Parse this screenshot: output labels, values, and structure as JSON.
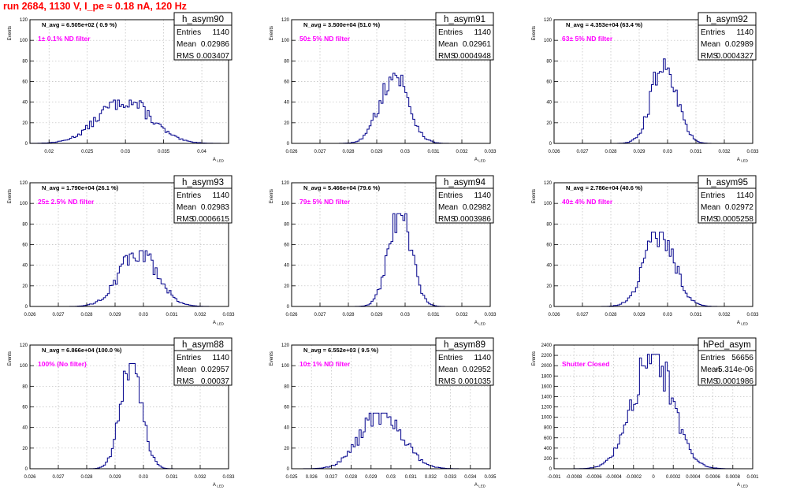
{
  "title": "run 2684,  1130 V, I_pe ≈ 0.18 nA, 120 Hz",
  "colors": {
    "title": "#ff0000",
    "histogram": "#00008b",
    "annotation": "#ff00ff",
    "grid": "#bbbbbb",
    "frame": "#000000"
  },
  "chart_data": [
    {
      "type": "histogram",
      "name": "h_asym90",
      "nAvg": "N_avg = 6.505e+02 ( 0.9 %)",
      "filter": "1± 0.1% ND filter",
      "stats": {
        "Entries": "1140",
        "Mean": "0.02986",
        "RMS": "0.003407"
      },
      "xlabel": "A_LED",
      "ylabel": "Events",
      "xlim": [
        0.0175,
        0.0435
      ],
      "ylim": [
        0,
        120
      ],
      "xticks": [
        "0.02",
        "0.025",
        "0.03",
        "0.035",
        "0.04"
      ],
      "yticks": [
        "0",
        "20",
        "40",
        "60",
        "80",
        "100",
        "120"
      ],
      "peak": 42
    },
    {
      "type": "histogram",
      "name": "h_asym91",
      "nAvg": "N_avg = 3.500e+04 (51.0 %)",
      "filter": "50± 5% ND filter",
      "stats": {
        "Entries": "1140",
        "Mean": "0.02961",
        "RMS": "0.0004948"
      },
      "xlabel": "A_LED",
      "ylabel": "Events",
      "xlim": [
        0.026,
        0.033
      ],
      "ylim": [
        0,
        120
      ],
      "xticks": [
        "0.026",
        "0.027",
        "0.028",
        "0.029",
        "0.03",
        "0.031",
        "0.032",
        "0.033"
      ],
      "yticks": [
        "0",
        "20",
        "40",
        "60",
        "80",
        "100",
        "120"
      ],
      "peak": 68
    },
    {
      "type": "histogram",
      "name": "h_asym92",
      "nAvg": "N_avg = 4.353e+04 (63.4 %)",
      "filter": "63± 5% ND filter",
      "stats": {
        "Entries": "1140",
        "Mean": "0.02989",
        "RMS": "0.0004327"
      },
      "xlabel": "A_LED",
      "ylabel": "Events",
      "xlim": [
        0.026,
        0.033
      ],
      "ylim": [
        0,
        120
      ],
      "xticks": [
        "0.026",
        "0.027",
        "0.028",
        "0.029",
        "0.03",
        "0.031",
        "0.032",
        "0.033"
      ],
      "yticks": [
        "0",
        "20",
        "40",
        "60",
        "80",
        "100",
        "120"
      ],
      "peak": 82
    },
    {
      "type": "histogram",
      "name": "h_asym93",
      "nAvg": "N_avg = 1.790e+04 (26.1 %)",
      "filter": "25± 2.5% ND filter",
      "stats": {
        "Entries": "1140",
        "Mean": "0.02983",
        "RMS": "0.0006615"
      },
      "xlabel": "A_LED",
      "ylabel": "Events",
      "xlim": [
        0.026,
        0.033
      ],
      "ylim": [
        0,
        120
      ],
      "xticks": [
        "0.026",
        "0.027",
        "0.028",
        "0.029",
        "0.03",
        "0.031",
        "0.032",
        "0.033"
      ],
      "yticks": [
        "0",
        "20",
        "40",
        "60",
        "80",
        "100",
        "120"
      ],
      "peak": 54
    },
    {
      "type": "histogram",
      "name": "h_asym94",
      "nAvg": "N_avg = 5.466e+04 (79.6 %)",
      "filter": "79± 5% ND filter",
      "stats": {
        "Entries": "1140",
        "Mean": "0.02982",
        "RMS": "0.0003986"
      },
      "xlabel": "A_LED",
      "ylabel": "Events",
      "xlim": [
        0.026,
        0.033
      ],
      "ylim": [
        0,
        120
      ],
      "xticks": [
        "0.026",
        "0.027",
        "0.028",
        "0.029",
        "0.03",
        "0.031",
        "0.032",
        "0.033"
      ],
      "yticks": [
        "0",
        "20",
        "40",
        "60",
        "80",
        "100",
        "120"
      ],
      "peak": 90
    },
    {
      "type": "histogram",
      "name": "h_asym95",
      "nAvg": "N_avg = 2.786e+04 (40.6 %)",
      "filter": "40± 4% ND filter",
      "stats": {
        "Entries": "1140",
        "Mean": "0.02972",
        "RMS": "0.0005258"
      },
      "xlabel": "A_LED",
      "ylabel": "Events",
      "xlim": [
        0.026,
        0.033
      ],
      "ylim": [
        0,
        120
      ],
      "xticks": [
        "0.026",
        "0.027",
        "0.028",
        "0.029",
        "0.03",
        "0.031",
        "0.032",
        "0.033"
      ],
      "yticks": [
        "0",
        "20",
        "40",
        "60",
        "80",
        "100",
        "120"
      ],
      "peak": 72
    },
    {
      "type": "histogram",
      "name": "h_asym88",
      "nAvg": "N_avg = 6.866e+04 (100.0 %)",
      "filter": "100% (No filter)",
      "stats": {
        "Entries": "1140",
        "Mean": "0.02957",
        "RMS": "0.00037"
      },
      "xlabel": "A_LED",
      "ylabel": "Events",
      "xlim": [
        0.026,
        0.033
      ],
      "ylim": [
        0,
        120
      ],
      "xticks": [
        "0.026",
        "0.027",
        "0.028",
        "0.029",
        "0.03",
        "0.031",
        "0.032",
        "0.033"
      ],
      "yticks": [
        "0",
        "20",
        "40",
        "60",
        "80",
        "100",
        "120"
      ],
      "peak": 102
    },
    {
      "type": "histogram",
      "name": "h_asym89",
      "nAvg": "N_avg = 6.552e+03 ( 9.5 %)",
      "filter": "10± 1% ND filter",
      "stats": {
        "Entries": "1140",
        "Mean": "0.02952",
        "RMS": "0.001035"
      },
      "xlabel": "A_LED",
      "ylabel": "Events",
      "xlim": [
        0.025,
        0.035
      ],
      "ylim": [
        0,
        120
      ],
      "xticks": [
        "0.025",
        "0.026",
        "0.027",
        "0.028",
        "0.029",
        "0.03",
        "0.031",
        "0.032",
        "0.033",
        "0.034",
        "0.035"
      ],
      "yticks": [
        "0",
        "20",
        "40",
        "60",
        "80",
        "100",
        "120"
      ],
      "peak": 54
    },
    {
      "type": "histogram",
      "name": "hPed_asym",
      "nAvg": "",
      "filter": "Shutter Closed",
      "stats": {
        "Entries": "56656",
        "Mean": "-5.314e-06",
        "RMS": "0.0001986"
      },
      "xlabel": "A_LED",
      "ylabel": "Events",
      "xlim": [
        -0.001,
        0.001
      ],
      "ylim": [
        0,
        2400
      ],
      "xticks": [
        "-0.001",
        "-0.0008",
        "-0.0006",
        "-0.0004",
        "-0.0002",
        "0",
        "0.0002",
        "0.0004",
        "0.0006",
        "0.0008",
        "0.001"
      ],
      "yticks": [
        "0",
        "200",
        "400",
        "600",
        "800",
        "1000",
        "1200",
        "1400",
        "1600",
        "1800",
        "2000",
        "2200",
        "2400"
      ],
      "peak": 2220
    }
  ]
}
